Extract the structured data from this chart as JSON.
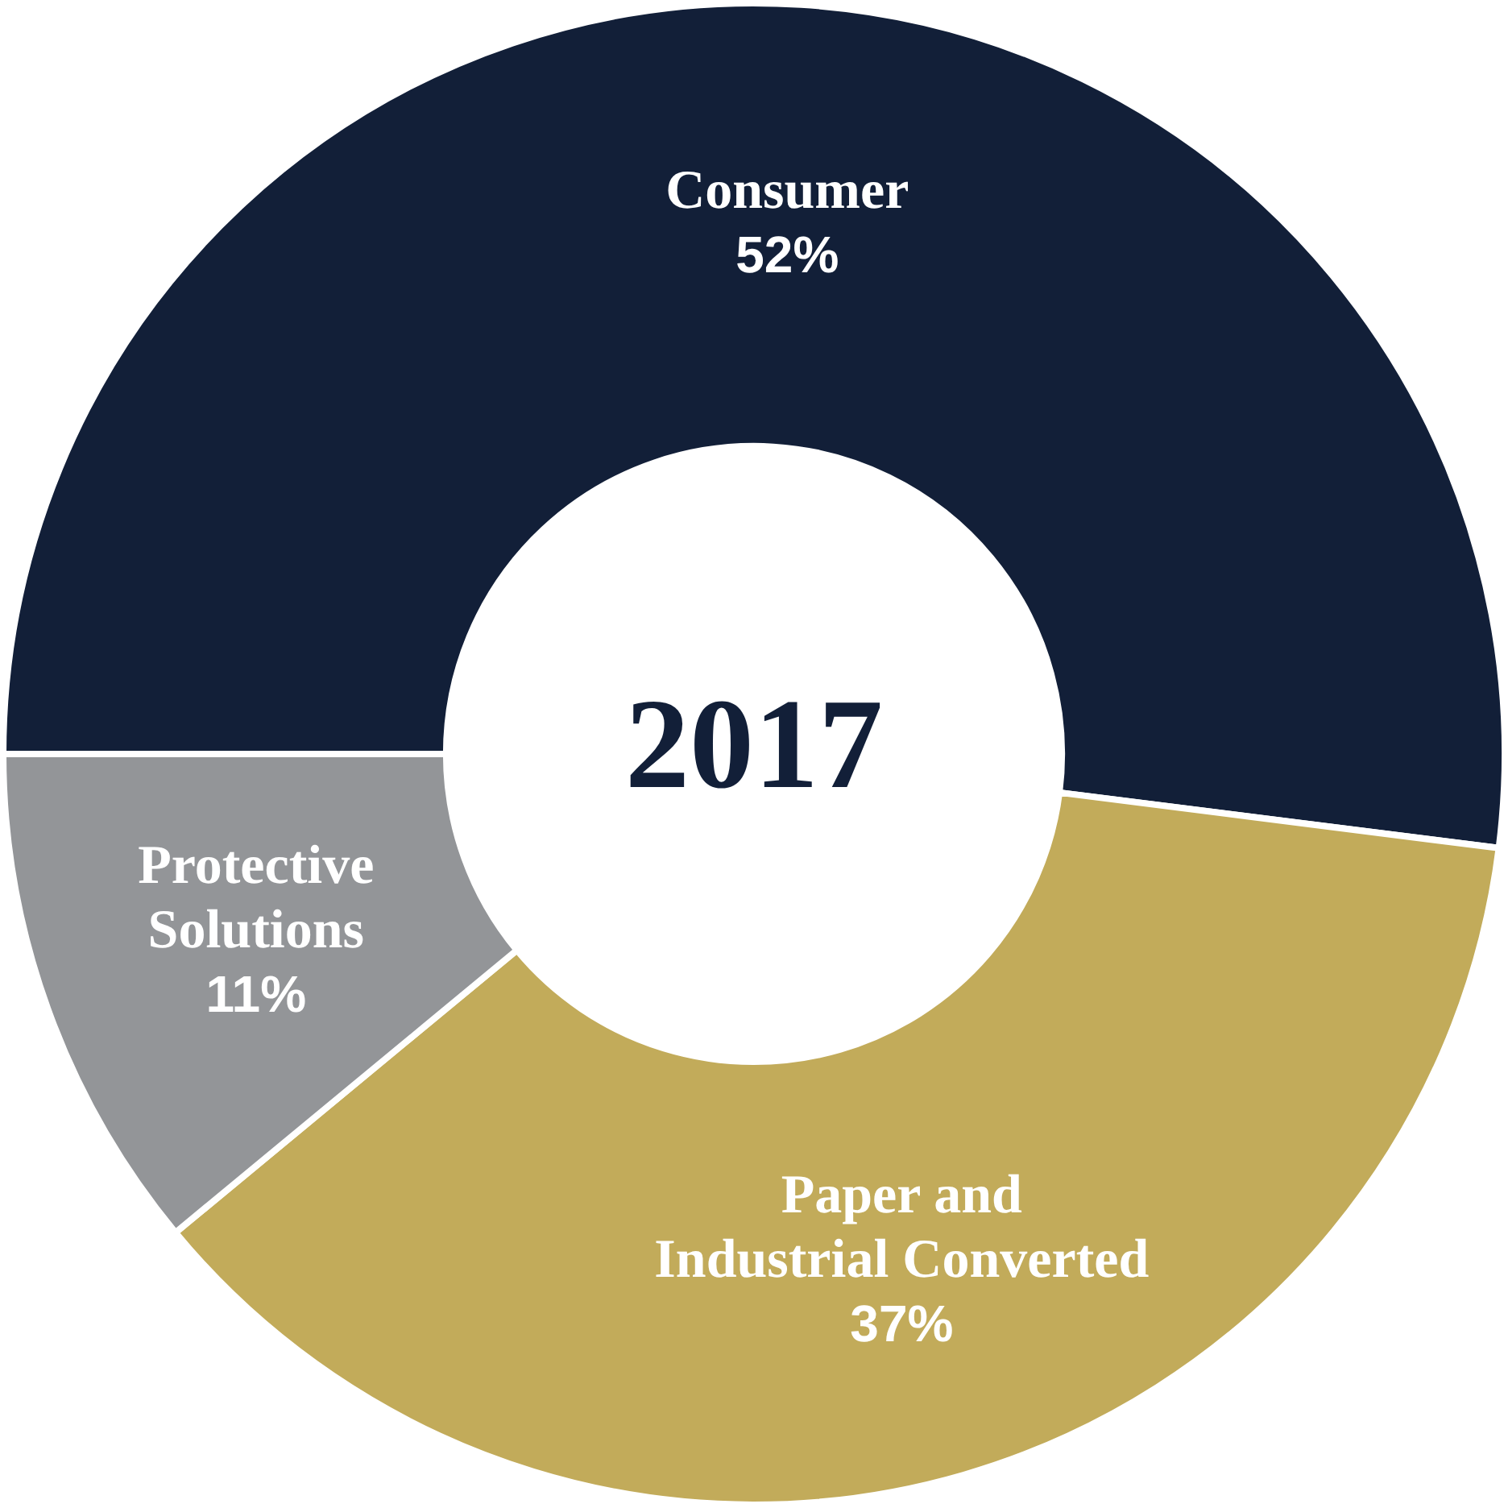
{
  "chart_data": {
    "type": "donut",
    "title": "2017",
    "categories": [
      "Consumer",
      "Paper and\nIndustrial Converted",
      "Protective\nSolutions"
    ],
    "values": [
      52,
      37,
      11
    ],
    "colors": [
      "#121f38",
      "#c2ab5a",
      "#939598"
    ],
    "value_labels": [
      "52%",
      "37%",
      "11%"
    ],
    "legend": false
  }
}
